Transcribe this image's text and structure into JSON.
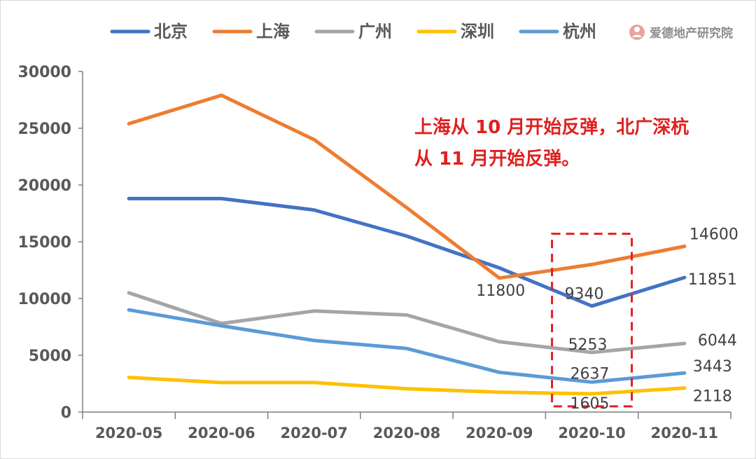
{
  "watermark": {
    "text": "爱德地产研究院",
    "icon": "person-circle-icon",
    "icon_color": "#e8a49a"
  },
  "annotation": {
    "lines": [
      "上海从 10 月开始反弹，北广深杭",
      "从 11 月开始反弹。"
    ],
    "color": "#e02020"
  },
  "chart_data": {
    "type": "line",
    "title": "",
    "xlabel": "",
    "ylabel": "",
    "categories": [
      "2020-05",
      "2020-06",
      "2020-07",
      "2020-08",
      "2020-09",
      "2020-10",
      "2020-11"
    ],
    "ylim": [
      0,
      30000
    ],
    "yticks": [
      0,
      5000,
      10000,
      15000,
      20000,
      25000,
      30000
    ],
    "grid": false,
    "legend": "top",
    "series": [
      {
        "name": "北京",
        "color": "#4472c4",
        "values": [
          18800,
          18800,
          17800,
          15500,
          12700,
          9340,
          11851
        ]
      },
      {
        "name": "上海",
        "color": "#ed7d31",
        "values": [
          25400,
          27900,
          24000,
          18000,
          11800,
          13000,
          14600
        ]
      },
      {
        "name": "广州",
        "color": "#a5a5a5",
        "values": [
          10500,
          7800,
          8900,
          8550,
          6200,
          5253,
          6044
        ]
      },
      {
        "name": "深圳",
        "color": "#ffc000",
        "values": [
          3050,
          2600,
          2600,
          2050,
          1750,
          1605,
          2118
        ]
      },
      {
        "name": "杭州",
        "color": "#5b9bd5",
        "values": [
          9000,
          7600,
          6300,
          5600,
          3500,
          2637,
          3443
        ]
      }
    ],
    "data_labels": [
      {
        "series": "上海",
        "category": "2020-09",
        "text": "11800"
      },
      {
        "series": "上海",
        "category": "2020-11",
        "text": "14600"
      },
      {
        "series": "北京",
        "category": "2020-10",
        "text": "9340"
      },
      {
        "series": "北京",
        "category": "2020-11",
        "text": "11851"
      },
      {
        "series": "广州",
        "category": "2020-10",
        "text": "5253"
      },
      {
        "series": "广州",
        "category": "2020-11",
        "text": "6044"
      },
      {
        "series": "杭州",
        "category": "2020-10",
        "text": "2637"
      },
      {
        "series": "杭州",
        "category": "2020-11",
        "text": "3443"
      },
      {
        "series": "深圳",
        "category": "2020-10",
        "text": "1605"
      },
      {
        "series": "深圳",
        "category": "2020-11",
        "text": "2118"
      }
    ],
    "highlight_box": {
      "category": "2020-10",
      "y_range": [
        500,
        15700
      ],
      "style": "dashed",
      "color": "#e02020"
    }
  }
}
